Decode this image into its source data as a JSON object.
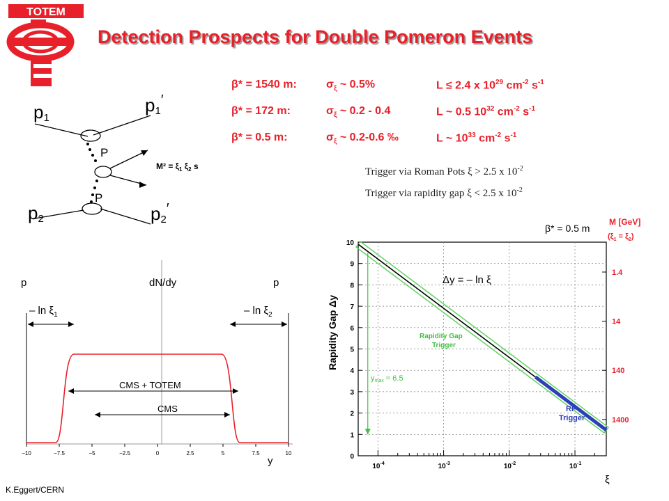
{
  "logo": {
    "text": "TOTEM",
    "colors": {
      "red": "#e8202a"
    }
  },
  "title": "Detection Prospects for Double Pomeron Events",
  "params": [
    {
      "beta": "β* = 1540 m:",
      "sigma": "σ",
      "sigma_sub": "ξ",
      "sigma_val": " ~ 0.5%",
      "lum": "L ≤ 2.4 x 10",
      "lum_exp": "29",
      "lum_unit": " cm",
      "lum_unit_exp": "-2",
      "lum_s": " s",
      "lum_s_exp": "-1"
    },
    {
      "beta": "β* = 172 m:",
      "sigma": "σ",
      "sigma_sub": "ξ",
      "sigma_val": " ~ 0.2 - 0.4",
      "lum": "L ~ 0.5 10",
      "lum_exp": "32",
      "lum_unit": " cm",
      "lum_unit_exp": "-2",
      "lum_s": " s",
      "lum_s_exp": "-1"
    },
    {
      "beta": "β* = 0.5 m:",
      "sigma": "σ",
      "sigma_sub": "ξ",
      "sigma_val": " ~ 0.2-0.6 ‰",
      "lum": "L ~ 10",
      "lum_exp": "33",
      "lum_unit": " cm",
      "lum_unit_exp": "-2",
      "lum_s": " s",
      "lum_s_exp": "-1"
    }
  ],
  "triggers": [
    {
      "text": "Trigger via Roman Pots  ξ > 2.5 x 10",
      "exp": "-2"
    },
    {
      "text": "Trigger via rapidity gap  ξ < 2.5 x 10",
      "exp": "-2"
    }
  ],
  "feynman": {
    "p1": "p",
    "p1_sub": "1",
    "p1p": "p",
    "p1p_sub": "1",
    "p1p_prime": "′",
    "p2": "p",
    "p2_sub": "2",
    "p2p": "p",
    "p2p_sub": "2",
    "p2p_prime": "′",
    "pomeron1": "P",
    "pomeron2": "P",
    "mass": "M² = ξ",
    "mass_sub1": "1",
    "mass_mid": " ξ",
    "mass_sub2": "2",
    "mass_end": " s"
  },
  "rapidity_plot": {
    "left_label": "p",
    "right_label": "p",
    "yaxis_label": "dN/dy",
    "xaxis_label": "y",
    "left_gap": "– ln ξ",
    "left_gap_sub": "1",
    "right_gap": "– ln ξ",
    "right_gap_sub": "2",
    "band_outer": "CMS + TOTEM",
    "band_inner": "CMS",
    "ticks": [
      "−10",
      "−7.5",
      "−5",
      "−2.5",
      "0",
      "2.5",
      "5",
      "7.5",
      "10"
    ]
  },
  "chart_data": {
    "type": "line",
    "xlabel": "ξ",
    "ylabel": "Rapidity Gap Δy",
    "x_scale": "log",
    "xlim": [
      5e-05,
      0.3
    ],
    "ylim": [
      0,
      10
    ],
    "grid": true,
    "x_ticks": [
      "10",
      "10",
      "10",
      "10"
    ],
    "x_tick_exps": [
      "-4",
      "-3",
      "-2",
      "-1"
    ],
    "y_ticks": [
      "0",
      "1",
      "2",
      "3",
      "4",
      "5",
      "6",
      "7",
      "8",
      "9",
      "10"
    ],
    "beta_label": "β* = 0.5 m",
    "right_axis_title": "M [GeV]",
    "right_axis_sub": "(ξ",
    "right_axis_sub_1": "1",
    "right_axis_sub_mid": " = ξ",
    "right_axis_sub_2": "2",
    "right_axis_sub_end": ")",
    "mass_ticks": [
      {
        "label": "1.4",
        "y": 8.6
      },
      {
        "label": "14",
        "y": 6.3
      },
      {
        "label": "140",
        "y": 4.0
      },
      {
        "label": "1400",
        "y": 1.7
      }
    ],
    "series": [
      {
        "name": "",
        "x": [
          5e-05,
          0.3
        ],
        "y": [
          9.9,
          1.2
        ]
      }
    ],
    "rp_segment": {
      "x": [
        0.025,
        0.3
      ],
      "y": [
        3.69,
        1.2
      ]
    },
    "annotations": {
      "formula": "Δy = – ln ξ",
      "gap_trigger": [
        "Rapidity Gap",
        "Trigger"
      ],
      "rp_trigger": [
        "RP",
        "Trigger"
      ],
      "ymax": "y",
      "ymax_sub": "max",
      "ymax_val": " = 6.5"
    },
    "colors": {
      "line": "#000000",
      "band": "#5fd35f",
      "rp": "#2d3fb8",
      "label_red": "#e8202a",
      "label_green": "#3fbf3f"
    }
  },
  "footer": "K.Eggert/CERN"
}
